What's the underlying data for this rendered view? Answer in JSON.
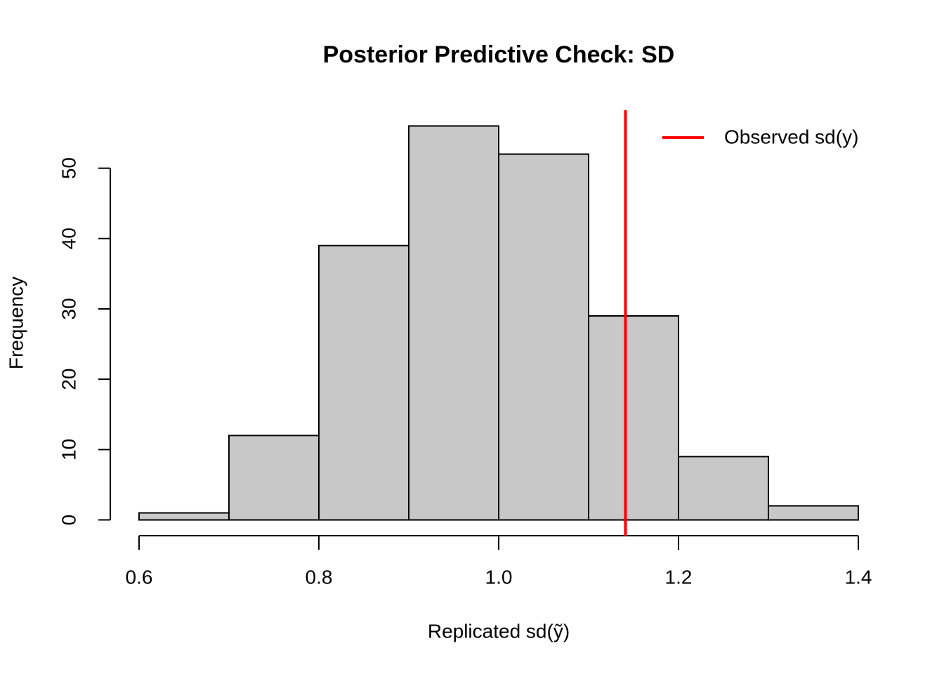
{
  "chart_data": {
    "type": "histogram",
    "title": "Posterior Predictive Check: SD",
    "x_label": "Replicated sd(ỹ)",
    "y_label": "Frequency",
    "bins": [
      0.6,
      0.7,
      0.8,
      0.9,
      1.0,
      1.1,
      1.2,
      1.3,
      1.4
    ],
    "values": [
      1,
      12,
      39,
      56,
      52,
      29,
      9,
      2
    ],
    "color": "#c8c8c8",
    "xlim": [
      0.6,
      1.4
    ],
    "xticks": [
      0.6,
      0.8,
      {
        "value": 1.0,
        "label": "1.0"
      },
      1.2,
      1.4
    ],
    "ylim": [
      0,
      56
    ],
    "yticks": [
      0,
      10,
      20,
      30,
      40,
      50
    ],
    "vline": {
      "name": "Observed sd(y)",
      "value": 1.141,
      "color": "#ff0000"
    },
    "legend": "top-right"
  }
}
